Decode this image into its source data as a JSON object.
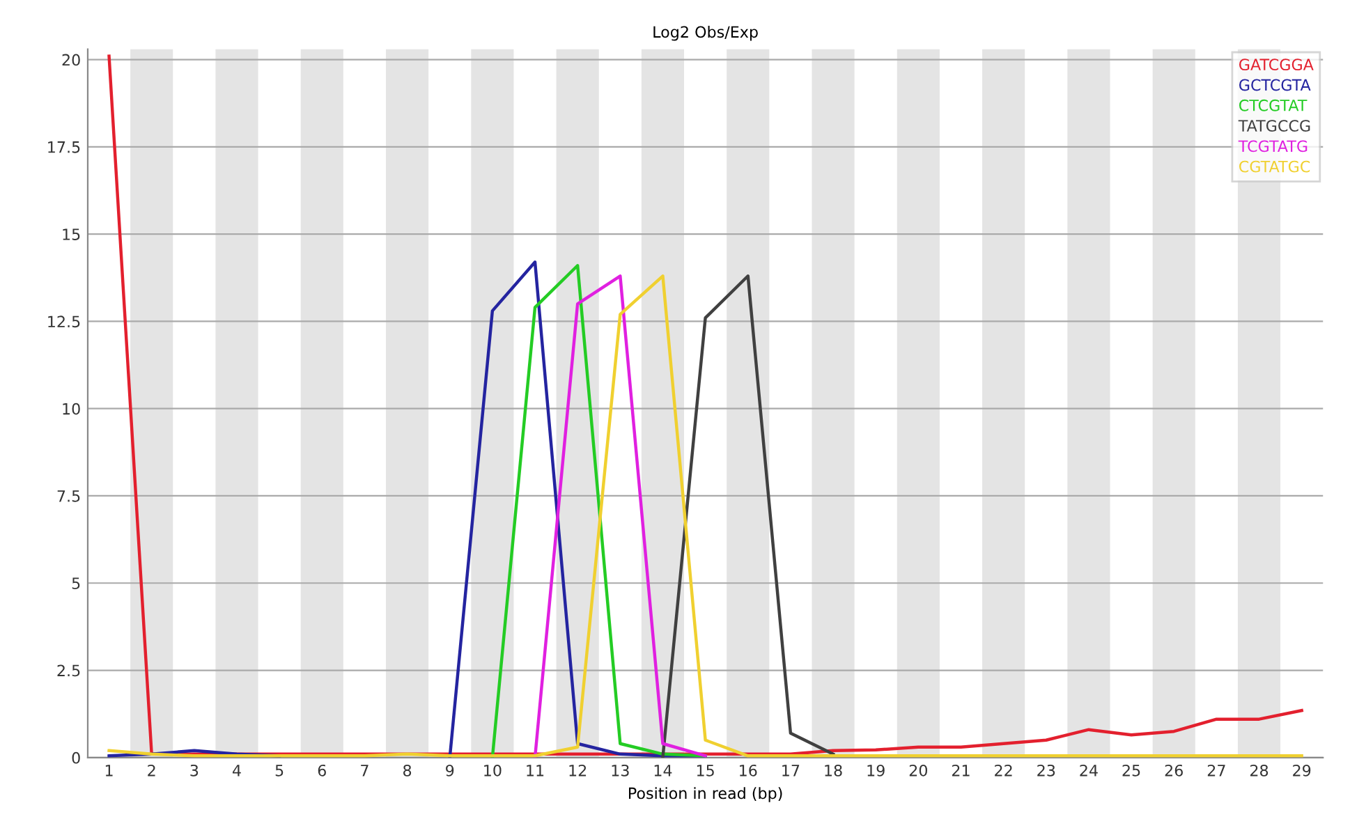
{
  "chart_data": {
    "type": "line",
    "title": "Log2 Obs/Exp",
    "xlabel": "Position in read (bp)",
    "x": [
      1,
      2,
      3,
      4,
      5,
      6,
      7,
      8,
      9,
      10,
      11,
      12,
      13,
      14,
      15,
      16,
      17,
      18,
      19,
      20,
      21,
      22,
      23,
      24,
      25,
      26,
      27,
      28,
      29
    ],
    "xlim": [
      0.5,
      29.5
    ],
    "xticks": [
      1,
      2,
      3,
      4,
      5,
      6,
      7,
      8,
      9,
      10,
      11,
      12,
      13,
      14,
      15,
      16,
      17,
      18,
      19,
      20,
      21,
      22,
      23,
      24,
      25,
      26,
      27,
      28,
      29
    ],
    "ylim": [
      0,
      20.3
    ],
    "yticks": [
      0,
      2.5,
      5,
      7.5,
      10,
      12.5,
      15,
      17.5,
      20
    ],
    "grid": "y",
    "legend": "top right",
    "marker": "none",
    "line_style": "solid",
    "bands": [
      {
        "axis": "x",
        "from": 1.5,
        "to": 2.5,
        "color": "#e4e4e4"
      },
      {
        "axis": "x",
        "from": 3.5,
        "to": 4.5,
        "color": "#e4e4e4"
      },
      {
        "axis": "x",
        "from": 5.5,
        "to": 6.5,
        "color": "#e4e4e4"
      },
      {
        "axis": "x",
        "from": 7.5,
        "to": 8.5,
        "color": "#e4e4e4"
      },
      {
        "axis": "x",
        "from": 9.5,
        "to": 10.5,
        "color": "#e4e4e4"
      },
      {
        "axis": "x",
        "from": 11.5,
        "to": 12.5,
        "color": "#e4e4e4"
      },
      {
        "axis": "x",
        "from": 13.5,
        "to": 14.5,
        "color": "#e4e4e4"
      },
      {
        "axis": "x",
        "from": 15.5,
        "to": 16.5,
        "color": "#e4e4e4"
      },
      {
        "axis": "x",
        "from": 17.5,
        "to": 18.5,
        "color": "#e4e4e4"
      },
      {
        "axis": "x",
        "from": 19.5,
        "to": 20.5,
        "color": "#e4e4e4"
      },
      {
        "axis": "x",
        "from": 21.5,
        "to": 22.5,
        "color": "#e4e4e4"
      },
      {
        "axis": "x",
        "from": 23.5,
        "to": 24.5,
        "color": "#e4e4e4"
      },
      {
        "axis": "x",
        "from": 25.5,
        "to": 26.5,
        "color": "#e4e4e4"
      },
      {
        "axis": "x",
        "from": 27.5,
        "to": 28.5,
        "color": "#e4e4e4"
      }
    ],
    "series": [
      {
        "name": "GATCGGA",
        "color": "#e3202e",
        "values": [
          20.1,
          0.1,
          0.1,
          0.1,
          0.1,
          0.1,
          0.1,
          0.1,
          0.1,
          0.1,
          0.1,
          0.1,
          0.1,
          0.1,
          0.1,
          0.1,
          0.1,
          0.2,
          0.22,
          0.3,
          0.3,
          0.4,
          0.5,
          0.8,
          0.65,
          0.75,
          1.1,
          1.1,
          1.35
        ]
      },
      {
        "name": "GCTCGTA",
        "color": "#2424a0",
        "values": [
          0.05,
          0.1,
          0.2,
          0.1,
          0.05,
          null,
          null,
          null,
          0,
          12.8,
          14.2,
          0.4,
          0.1,
          0.05,
          0.05,
          null,
          null,
          null,
          null,
          null,
          null,
          null,
          null,
          null,
          null,
          null,
          null,
          null,
          null
        ]
      },
      {
        "name": "CTCGTAT",
        "color": "#24cc24",
        "values": [
          null,
          null,
          null,
          null,
          null,
          null,
          null,
          null,
          null,
          0,
          12.9,
          14.1,
          0.4,
          0.1,
          0.05,
          null,
          null,
          null,
          null,
          null,
          null,
          null,
          null,
          null,
          null,
          null,
          null,
          null,
          null
        ]
      },
      {
        "name": "TATGCCG",
        "color": "#404040",
        "values": [
          null,
          null,
          null,
          null,
          null,
          null,
          null,
          null,
          null,
          null,
          null,
          null,
          null,
          0,
          12.6,
          13.8,
          0.7,
          0.1,
          null,
          null,
          null,
          null,
          null,
          null,
          null,
          null,
          null,
          null,
          null
        ]
      },
      {
        "name": "TCGTATG",
        "color": "#e020e0",
        "values": [
          null,
          null,
          null,
          null,
          null,
          null,
          null,
          null,
          null,
          null,
          0,
          13.0,
          13.8,
          0.4,
          0.05,
          null,
          null,
          null,
          null,
          null,
          null,
          null,
          null,
          null,
          null,
          null,
          null,
          null,
          null
        ]
      },
      {
        "name": "CGTATGC",
        "color": "#f0d030",
        "values": [
          0.2,
          0.1,
          0.05,
          0.05,
          0.05,
          0.05,
          0.05,
          0.1,
          0.05,
          0.05,
          0.05,
          0.3,
          12.7,
          13.8,
          0.5,
          0.05,
          0.05,
          0.05,
          0.05,
          0.05,
          0.05,
          0.05,
          0.05,
          0.05,
          0.05,
          0.05,
          0.05,
          0.05,
          0.05
        ]
      }
    ]
  }
}
